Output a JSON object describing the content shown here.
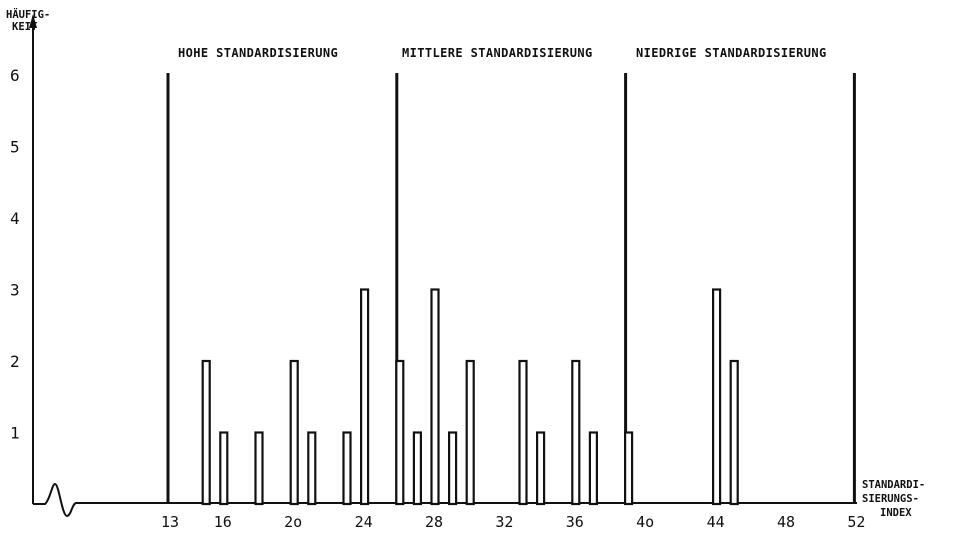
{
  "chart_data": {
    "type": "bar",
    "ylabel": [
      "HÄUFIG-",
      "KEIT"
    ],
    "xlabel": [
      "STANDARDI-",
      "SIERUNGS-",
      "INDEX"
    ],
    "x_ticks": [
      "13",
      "16",
      "2o",
      "24",
      "28",
      "32",
      "36",
      "4o",
      "44",
      "48",
      "52"
    ],
    "x_tick_values": [
      13,
      16,
      20,
      24,
      28,
      32,
      36,
      40,
      44,
      48,
      52
    ],
    "y_ticks": [
      "1",
      "2",
      "3",
      "4",
      "5",
      "6"
    ],
    "y_tick_values": [
      1,
      2,
      3,
      4,
      5,
      6
    ],
    "xlim": [
      10.5,
      52.5
    ],
    "ylim": [
      0,
      6
    ],
    "grid": false,
    "region_labels": [
      "HOHE STANDARDISIERUNG",
      "MITTLERE STANDARDISIERUNG",
      "NIEDRIGE STANDARDISIERUNG"
    ],
    "dividers": [
      13,
      26,
      39,
      52
    ],
    "x": [
      15,
      16,
      18,
      20,
      21,
      23,
      24,
      26,
      27,
      28,
      29,
      30,
      33,
      34,
      36,
      37,
      39,
      44,
      45
    ],
    "values": [
      2,
      1,
      1,
      2,
      1,
      1,
      3,
      2,
      1,
      3,
      1,
      2,
      2,
      1,
      2,
      1,
      1,
      3,
      2
    ]
  }
}
